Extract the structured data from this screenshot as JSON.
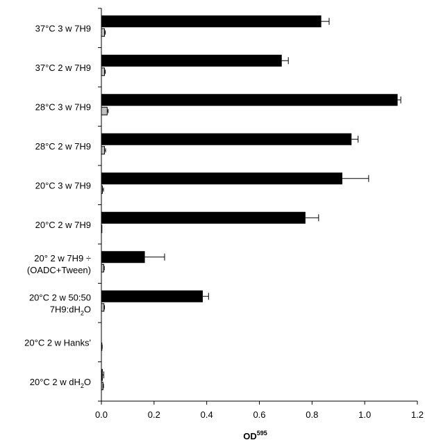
{
  "chart_data": {
    "type": "bar",
    "orientation": "horizontal",
    "categories": [
      {
        "lines": [
          "37°C 3 w 7H9"
        ]
      },
      {
        "lines": [
          "37°C 2 w 7H9"
        ]
      },
      {
        "lines": [
          "28°C 3 w 7H9"
        ]
      },
      {
        "lines": [
          "28°C 2 w 7H9"
        ]
      },
      {
        "lines": [
          "20°C 3 w 7H9"
        ]
      },
      {
        "lines": [
          "20°C 2 w 7H9"
        ]
      },
      {
        "lines": [
          "20° 2 w 7H9 ÷",
          "(OADC+Tween)"
        ]
      },
      {
        "lines": [
          "20°C 2 w 50:50",
          "7H9:dH2O"
        ]
      },
      {
        "lines": [
          "20°C 2 w Hanks'"
        ]
      },
      {
        "lines": [
          "20°C 2 w dH2O"
        ]
      }
    ],
    "series": [
      {
        "color": "#000000",
        "values": [
          0.835,
          0.685,
          1.125,
          0.95,
          0.915,
          0.775,
          0.165,
          0.385,
          0.0,
          0.005
        ],
        "errors": [
          0.03,
          0.025,
          0.012,
          0.025,
          0.1,
          0.05,
          0.075,
          0.022,
          0.0,
          0.004
        ]
      },
      {
        "color": "#c0c0c0",
        "values": [
          0.012,
          0.012,
          0.022,
          0.012,
          0.004,
          0.002,
          0.009,
          0.01,
          0.002,
          0.006
        ],
        "errors": [
          0.003,
          0.003,
          0.004,
          0.004,
          0.004,
          0.0,
          0.002,
          0.002,
          0.001,
          0.002
        ]
      }
    ],
    "xlim": [
      0,
      1.2
    ],
    "xticks": [
      "0.0",
      "0.2",
      "0.4",
      "0.6",
      "0.8",
      "1.0",
      "1.2"
    ],
    "xlabel": "OD",
    "xlabel_superscript": "595",
    "grid": false,
    "legend": "none"
  }
}
